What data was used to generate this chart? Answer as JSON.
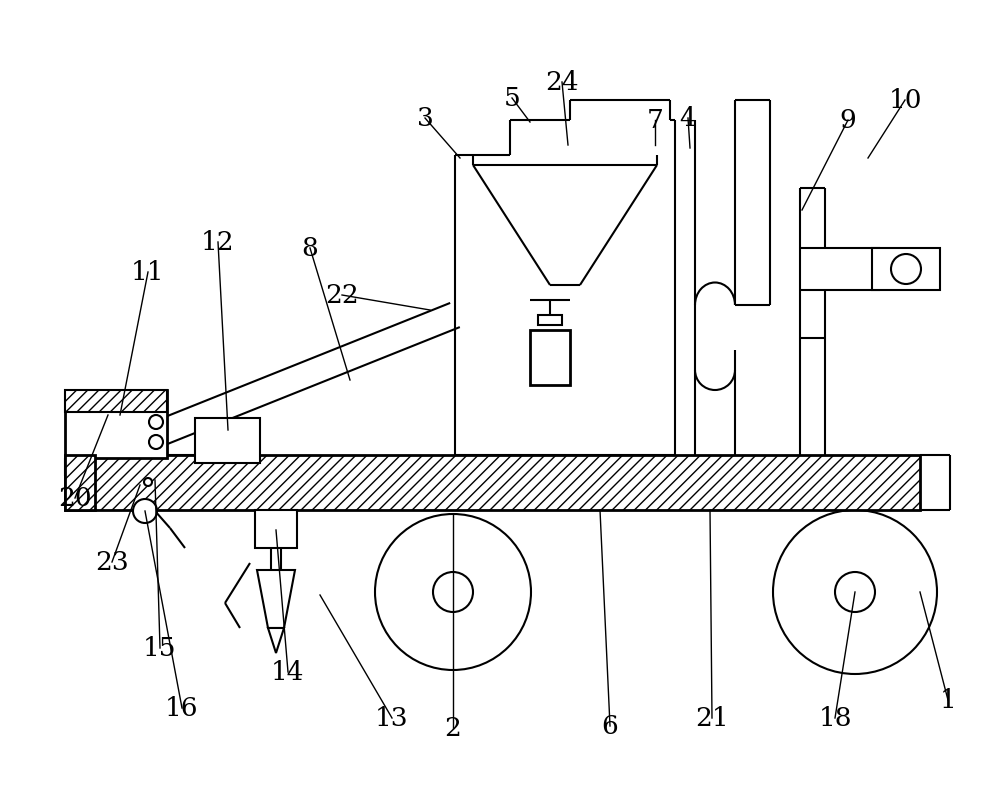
{
  "bg_color": "#ffffff",
  "lc": "#000000",
  "lw": 1.5,
  "figsize": [
    10.0,
    7.88
  ],
  "dpi": 100
}
